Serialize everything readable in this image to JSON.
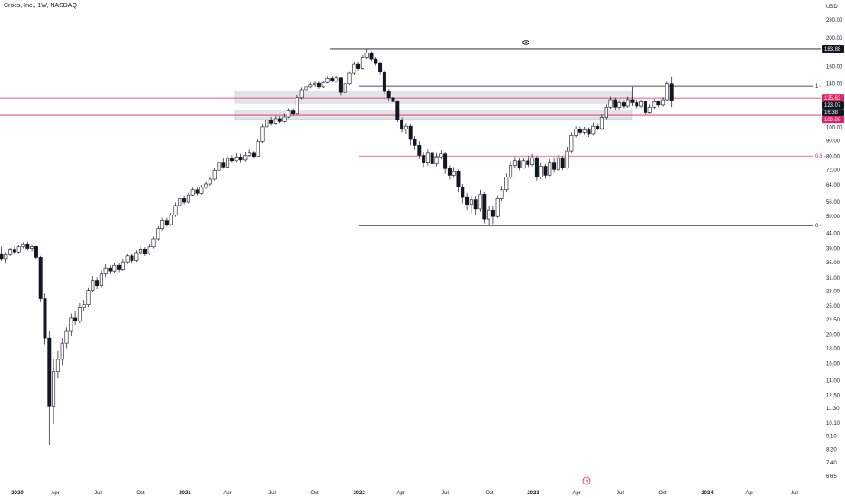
{
  "header": {
    "title": "Crocs, Inc., 1W, NASDAQ"
  },
  "chart_data": {
    "type": "candlestick",
    "currency": "USD",
    "scale": "log",
    "ylim": [
      6.2,
      250
    ],
    "y_ticks": [
      "230.00",
      "200.00",
      "180.00",
      "160.00",
      "140.00",
      "120.00",
      "100.00",
      "90.00",
      "80.00",
      "72.00",
      "64.00",
      "56.00",
      "50.00",
      "44.00",
      "39.00",
      "35.00",
      "31.00",
      "28.00",
      "25.00",
      "22.50",
      "20.00",
      "18.00",
      "16.00",
      "14.00",
      "12.50",
      "11.30",
      "10.10",
      "9.10",
      "8.20",
      "7.40",
      "6.65"
    ],
    "x_ticks": [
      "2020",
      "Apr",
      "Jul",
      "Oct",
      "2021",
      "Apr",
      "Jul",
      "Oct",
      "2022",
      "Apr",
      "Jul",
      "Oct",
      "2023",
      "Apr",
      "Jul",
      "Oct",
      "2024",
      "Apr",
      "Jul"
    ],
    "price_tags": [
      {
        "label": "183.88",
        "value": 183.88,
        "color": "#131722"
      },
      {
        "label": "125.63",
        "value": 125.63,
        "color": "#e91e63"
      },
      {
        "label": "123.07",
        "value": 123.07,
        "color": "#131722"
      },
      {
        "label": "16:38",
        "value": 117.5,
        "color": "#131722"
      },
      {
        "label": "109.99",
        "value": 109.99,
        "color": "#e91e63"
      }
    ],
    "horizontal_lines": [
      {
        "value": 183.88,
        "color": "#131722"
      },
      {
        "value": 125.63,
        "color": "#e91e63"
      },
      {
        "value": 109.99,
        "color": "#e91e63"
      }
    ],
    "fibonacci": [
      {
        "level": "1",
        "value": 137.7,
        "color": "#131722"
      },
      {
        "level": "0.5",
        "value": 80.1,
        "color": "#e91e63"
      },
      {
        "level": "0",
        "value": 46.6,
        "color": "#131722"
      }
    ],
    "zones": [
      {
        "low": 120.5,
        "high": 132.5
      },
      {
        "low": 106.5,
        "high": 114.5
      }
    ],
    "candles": [
      [
        37.5,
        36.0,
        39.5,
        35.5
      ],
      [
        36.0,
        37.2,
        38.0,
        35.0
      ],
      [
        37.2,
        38.7,
        39.2,
        36.8
      ],
      [
        38.7,
        38.0,
        39.5,
        37.5
      ],
      [
        38.0,
        39.5,
        40.0,
        37.6
      ],
      [
        39.5,
        40.2,
        41.0,
        39.0
      ],
      [
        40.2,
        39.0,
        41.2,
        38.5
      ],
      [
        39.0,
        39.6,
        40.1,
        38.2
      ],
      [
        39.6,
        36.4,
        39.8,
        36.0
      ],
      [
        36.4,
        26.5,
        36.8,
        25.8
      ],
      [
        26.5,
        19.5,
        27.5,
        18.5
      ],
      [
        19.5,
        11.5,
        20.5,
        8.5
      ],
      [
        11.5,
        15.0,
        16.5,
        10.0
      ],
      [
        15.0,
        16.5,
        17.6,
        14.2
      ],
      [
        16.5,
        18.7,
        19.5,
        15.8
      ],
      [
        18.7,
        20.5,
        21.2,
        18.0
      ],
      [
        20.5,
        22.8,
        23.5,
        19.8
      ],
      [
        22.8,
        22.2,
        24.0,
        21.5
      ],
      [
        22.2,
        24.7,
        25.5,
        21.8
      ],
      [
        24.7,
        25.2,
        26.2,
        24.0
      ],
      [
        25.2,
        28.2,
        28.8,
        24.8
      ],
      [
        28.2,
        30.5,
        31.5,
        27.8
      ],
      [
        30.5,
        29.2,
        31.2,
        28.5
      ],
      [
        29.2,
        32.0,
        33.0,
        28.8
      ],
      [
        32.0,
        33.5,
        34.5,
        31.2
      ],
      [
        33.5,
        32.8,
        34.2,
        32.0
      ],
      [
        32.8,
        34.2,
        35.0,
        32.2
      ],
      [
        34.2,
        33.2,
        35.0,
        32.5
      ],
      [
        33.2,
        35.2,
        36.0,
        32.8
      ],
      [
        35.2,
        36.8,
        37.5,
        34.6
      ],
      [
        36.8,
        35.6,
        37.4,
        35.0
      ],
      [
        35.6,
        37.8,
        38.5,
        35.2
      ],
      [
        37.8,
        38.8,
        39.7,
        37.2
      ],
      [
        38.8,
        37.4,
        39.4,
        36.8
      ],
      [
        37.4,
        39.5,
        40.3,
        37.0
      ],
      [
        39.5,
        42.0,
        42.8,
        39.0
      ],
      [
        42.0,
        45.5,
        46.5,
        41.5
      ],
      [
        45.5,
        48.5,
        49.5,
        44.8
      ],
      [
        48.5,
        47.0,
        49.5,
        46.2
      ],
      [
        47.0,
        50.5,
        51.5,
        46.5
      ],
      [
        50.5,
        54.5,
        55.8,
        49.8
      ],
      [
        54.5,
        57.5,
        58.6,
        53.5
      ],
      [
        57.5,
        56.0,
        59.0,
        55.0
      ],
      [
        56.0,
        59.2,
        60.2,
        55.4
      ],
      [
        59.2,
        61.5,
        62.6,
        58.4
      ],
      [
        61.5,
        60.0,
        62.6,
        59.0
      ],
      [
        60.0,
        62.8,
        64.0,
        59.4
      ],
      [
        62.8,
        64.5,
        65.7,
        62.0
      ],
      [
        64.5,
        66.8,
        68.0,
        63.6
      ],
      [
        66.8,
        71.5,
        73.0,
        66.0
      ],
      [
        71.5,
        76.0,
        78.0,
        70.5
      ],
      [
        76.0,
        73.5,
        78.5,
        72.5
      ],
      [
        73.5,
        78.5,
        80.5,
        72.8
      ],
      [
        78.5,
        77.0,
        80.5,
        76.0
      ],
      [
        77.0,
        79.5,
        82.0,
        76.2
      ],
      [
        79.5,
        77.5,
        81.5,
        76.0
      ],
      [
        77.5,
        80.5,
        82.5,
        76.5
      ],
      [
        80.5,
        82.0,
        84.0,
        79.5
      ],
      [
        82.0,
        79.8,
        83.0,
        79.0
      ],
      [
        79.8,
        89.5,
        91.0,
        79.5
      ],
      [
        89.5,
        100.5,
        102.5,
        88.5
      ],
      [
        100.5,
        106.0,
        108.5,
        99.5
      ],
      [
        106.0,
        103.0,
        108.5,
        101.5
      ],
      [
        103.0,
        107.0,
        109.5,
        102.0
      ],
      [
        107.0,
        104.5,
        109.0,
        103.0
      ],
      [
        104.5,
        108.5,
        111.0,
        103.8
      ],
      [
        108.5,
        113.5,
        116.0,
        107.5
      ],
      [
        113.5,
        111.0,
        116.0,
        109.5
      ],
      [
        111.0,
        126.0,
        128.5,
        110.5
      ],
      [
        126.0,
        134.0,
        136.5,
        124.5
      ],
      [
        134.0,
        137.0,
        139.5,
        131.5
      ],
      [
        137.0,
        139.0,
        141.5,
        135.5
      ],
      [
        139.0,
        140.5,
        143.0,
        137.0
      ],
      [
        140.5,
        137.0,
        142.5,
        135.0
      ],
      [
        137.0,
        141.5,
        143.5,
        135.8
      ],
      [
        141.5,
        146.5,
        148.5,
        140.5
      ],
      [
        146.5,
        143.0,
        148.5,
        141.5
      ],
      [
        143.0,
        147.0,
        149.0,
        141.5
      ],
      [
        147.0,
        131.0,
        148.0,
        128.0
      ],
      [
        131.0,
        140.0,
        142.0,
        129.5
      ],
      [
        140.0,
        152.0,
        154.5,
        138.5
      ],
      [
        152.0,
        163.0,
        165.5,
        150.0
      ],
      [
        163.0,
        158.0,
        166.5,
        155.5
      ],
      [
        158.0,
        172.0,
        175.0,
        156.5
      ],
      [
        172.0,
        178.0,
        183.88,
        170.0
      ],
      [
        178.0,
        170.0,
        180.5,
        167.5
      ],
      [
        170.0,
        164.0,
        172.5,
        161.5
      ],
      [
        164.0,
        154.0,
        166.0,
        150.5
      ],
      [
        154.0,
        132.0,
        156.0,
        129.0
      ],
      [
        132.0,
        126.0,
        134.5,
        122.5
      ],
      [
        126.0,
        122.0,
        129.0,
        119.5
      ],
      [
        122.0,
        106.0,
        123.5,
        104.0
      ],
      [
        106.0,
        98.5,
        108.0,
        96.0
      ],
      [
        98.5,
        101.0,
        103.0,
        95.0
      ],
      [
        101.0,
        91.0,
        102.5,
        87.0
      ],
      [
        91.0,
        87.0,
        93.5,
        84.0
      ],
      [
        87.0,
        80.5,
        89.5,
        78.0
      ],
      [
        80.5,
        76.0,
        82.5,
        73.5
      ],
      [
        76.0,
        82.0,
        84.0,
        74.5
      ],
      [
        82.0,
        75.5,
        83.5,
        72.0
      ],
      [
        75.5,
        79.5,
        82.0,
        74.0
      ],
      [
        79.5,
        81.5,
        83.5,
        78.0
      ],
      [
        81.5,
        72.5,
        82.5,
        70.0
      ],
      [
        72.5,
        69.0,
        74.5,
        66.5
      ],
      [
        69.0,
        71.0,
        73.5,
        67.5
      ],
      [
        71.0,
        63.0,
        72.0,
        60.5
      ],
      [
        63.0,
        58.0,
        64.5,
        55.5
      ],
      [
        58.0,
        55.0,
        60.0,
        52.5
      ],
      [
        55.0,
        57.0,
        59.0,
        51.5
      ],
      [
        57.0,
        53.0,
        58.5,
        50.5
      ],
      [
        53.0,
        59.5,
        61.5,
        52.0
      ],
      [
        59.5,
        49.0,
        60.5,
        47.5
      ],
      [
        49.0,
        52.5,
        54.5,
        47.0
      ],
      [
        52.5,
        50.0,
        54.0,
        47.2
      ],
      [
        50.0,
        57.5,
        59.0,
        49.5
      ],
      [
        57.5,
        61.5,
        63.5,
        56.5
      ],
      [
        61.5,
        68.0,
        70.0,
        60.5
      ],
      [
        68.0,
        74.5,
        76.5,
        67.0
      ],
      [
        74.5,
        77.0,
        79.5,
        73.0
      ],
      [
        77.0,
        73.0,
        79.0,
        71.5
      ],
      [
        73.0,
        77.0,
        79.0,
        72.5
      ],
      [
        77.0,
        75.0,
        80.0,
        73.5
      ],
      [
        75.0,
        79.0,
        81.5,
        74.0
      ],
      [
        79.0,
        68.0,
        80.0,
        66.0
      ],
      [
        68.0,
        74.0,
        76.0,
        67.0
      ],
      [
        74.0,
        69.0,
        75.5,
        67.0
      ],
      [
        69.0,
        76.0,
        78.0,
        68.5
      ],
      [
        76.0,
        72.0,
        78.5,
        70.5
      ],
      [
        72.0,
        79.0,
        81.0,
        71.0
      ],
      [
        79.0,
        73.0,
        80.0,
        71.5
      ],
      [
        73.0,
        83.0,
        86.0,
        72.5
      ],
      [
        83.0,
        94.0,
        96.0,
        82.0
      ],
      [
        94.0,
        98.5,
        101.0,
        92.5
      ],
      [
        98.5,
        96.0,
        100.5,
        94.5
      ],
      [
        96.0,
        98.0,
        100.5,
        94.5
      ],
      [
        98.0,
        95.0,
        100.0,
        93.0
      ],
      [
        95.0,
        101.0,
        103.5,
        94.0
      ],
      [
        101.0,
        99.0,
        103.0,
        97.5
      ],
      [
        99.0,
        108.0,
        110.5,
        98.0
      ],
      [
        108.0,
        117.0,
        119.5,
        106.5
      ],
      [
        117.0,
        124.0,
        127.0,
        115.5
      ],
      [
        124.0,
        117.0,
        126.0,
        114.5
      ],
      [
        117.0,
        121.0,
        123.5,
        115.0
      ],
      [
        121.0,
        118.0,
        123.5,
        116.0
      ],
      [
        118.0,
        124.0,
        127.0,
        116.5
      ],
      [
        124.0,
        121.0,
        137.0,
        118.0
      ],
      [
        121.0,
        118.0,
        124.0,
        116.0
      ],
      [
        118.0,
        122.0,
        124.0,
        116.5
      ],
      [
        122.0,
        112.0,
        123.0,
        110.0
      ],
      [
        112.0,
        117.0,
        119.5,
        111.0
      ],
      [
        117.0,
        122.0,
        124.5,
        115.5
      ],
      [
        122.0,
        119.0,
        123.5,
        117.0
      ],
      [
        119.0,
        124.0,
        126.5,
        117.5
      ],
      [
        124.0,
        140.0,
        142.5,
        122.5
      ],
      [
        140.0,
        123.07,
        148.0,
        117.0
      ]
    ]
  }
}
